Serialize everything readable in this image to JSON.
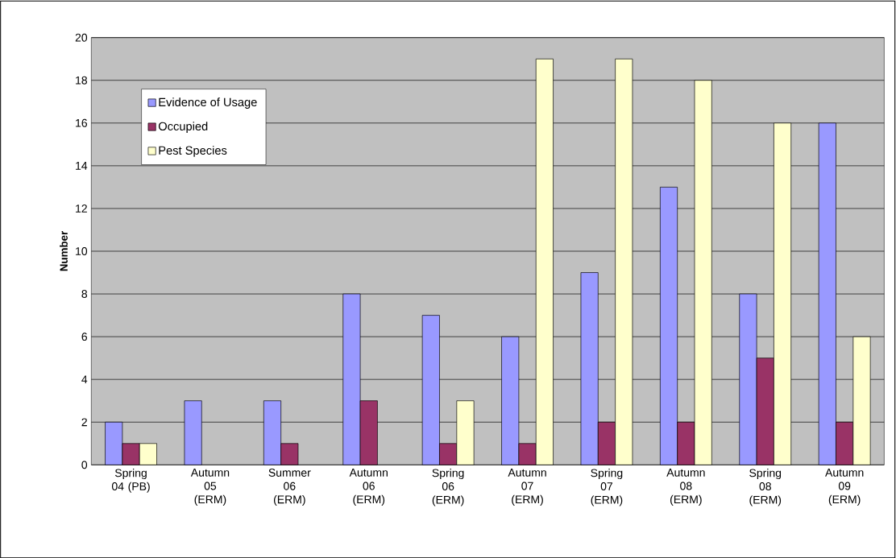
{
  "chart_data": {
    "type": "bar",
    "ylabel": "Number",
    "categories": [
      "Spring 04 (PB)",
      "Autumn 05 (ERM)",
      "Summer 06 (ERM)",
      "Autumn 06 (ERM)",
      "Spring 06 (ERM)",
      "Autumn 07 (ERM)",
      "Spring 07 (ERM)",
      "Autumn 08 (ERM)",
      "Spring 08 (ERM)",
      "Autumn 09 (ERM)"
    ],
    "series": [
      {
        "name": "Evidence of Usage",
        "color": "#9999ff",
        "values": [
          2,
          3,
          3,
          8,
          7,
          6,
          9,
          13,
          8,
          16
        ]
      },
      {
        "name": "Occupied",
        "color": "#993366",
        "values": [
          1,
          null,
          1,
          3,
          1,
          1,
          2,
          2,
          5,
          2
        ]
      },
      {
        "name": "Pest Species",
        "color": "#ffffcc",
        "values": [
          1,
          null,
          null,
          null,
          3,
          19,
          19,
          18,
          16,
          6
        ]
      }
    ],
    "ylim": [
      0,
      20
    ],
    "yticks": [
      0,
      2,
      4,
      6,
      8,
      10,
      12,
      14,
      16,
      18,
      20
    ],
    "grid": "y",
    "legend": "top left"
  }
}
